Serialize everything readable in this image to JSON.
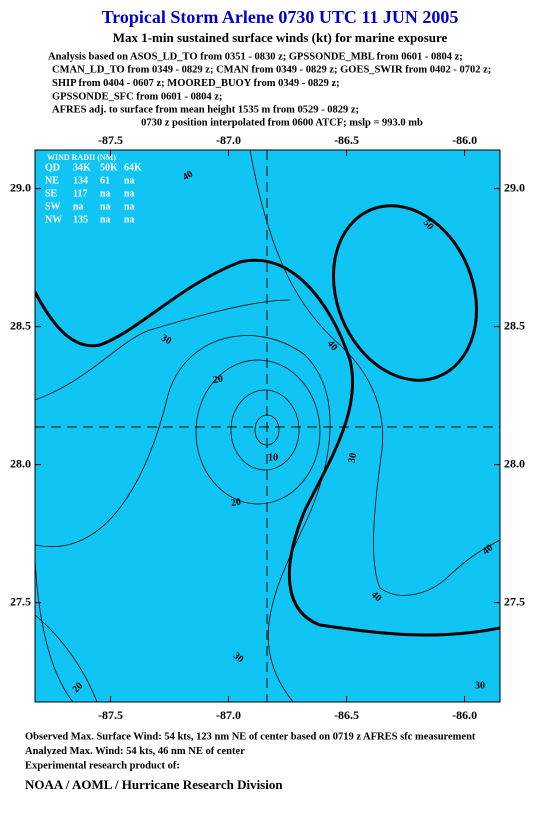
{
  "title": "Tropical Storm Arlene 0730 UTC 11 JUN 2005",
  "subtitle": "Max 1-min sustained surface winds (kt) for marine exposure",
  "analysis": [
    "Analysis based on  ASOS_LD_TO from 0351 - 0830 z;  GPSSONDE_MBL from 0601 - 0804 z;",
    "CMAN_LD_TO from 0349 - 0829 z;  CMAN from 0349 - 0829 z;  GOES_SWIR from 0402 - 0702 z;",
    "SHIP from 0404 - 0607 z;  MOORED_BUOY from 0349 - 0829 z;",
    "GPSSONDE_SFC from 0601 - 0804 z;",
    "AFRES adj. to surface from mean height 1535 m from 0529 - 0829 z;"
  ],
  "position_note": "0730 z position interpolated from 0600 ATCF; mslp = 993.0 mb",
  "map": {
    "xlim": [
      -87.82,
      -85.85
    ],
    "ylim": [
      27.14,
      29.14
    ],
    "xticks": [
      {
        "value": -87.5,
        "label": "-87.5"
      },
      {
        "value": -87.0,
        "label": "-87.0"
      },
      {
        "value": -86.5,
        "label": "-86.5"
      },
      {
        "value": -86.0,
        "label": "-86.0"
      }
    ],
    "yticks": [
      {
        "value": 29.0,
        "label": "29.0"
      },
      {
        "value": 28.5,
        "label": "28.5"
      },
      {
        "value": 28.0,
        "label": "28.0"
      },
      {
        "value": 27.5,
        "label": "27.5"
      }
    ],
    "contour_labels": [
      40,
      50,
      30,
      40,
      20,
      30,
      10,
      20,
      40,
      40,
      30,
      20,
      30
    ],
    "wind_radii": {
      "title": "WIND RADII (NM)",
      "header": [
        "QD",
        "34K",
        "50K",
        "64K"
      ],
      "rows": [
        [
          "NE",
          134,
          61,
          "na"
        ],
        [
          "SE",
          117,
          "na",
          "na"
        ],
        [
          "SW",
          "na",
          "na",
          "na"
        ],
        [
          "NW",
          135,
          "na",
          "na"
        ]
      ]
    }
  },
  "footer": [
    "Observed Max. Surface Wind: 54 kts, 123 nm NE of center based on 0719 z AFRES sfc measurement",
    "Analyzed Max. Wind: 54 kts, 46 nm NE of center",
    "Experimental research product of:"
  ],
  "credit": "NOAA / AOML / Hurricane Research Division"
}
